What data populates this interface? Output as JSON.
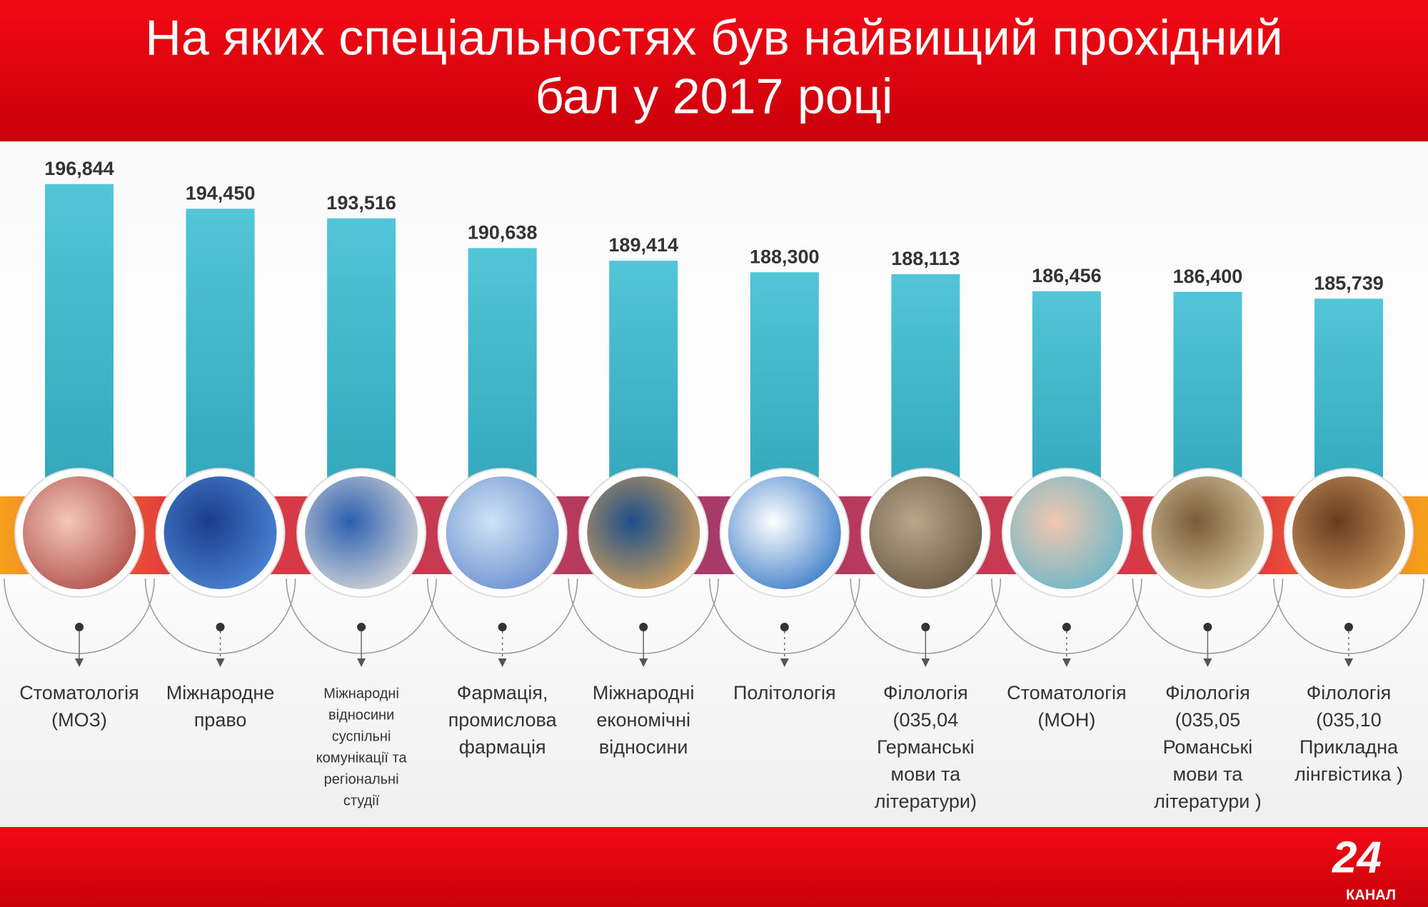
{
  "chart_data": {
    "type": "bar",
    "title": [
      "На яких спеціальностях був найвищий прохідний",
      "бал у 2017 році"
    ],
    "categories": [
      [
        "Стоматологія",
        "(МОЗ)"
      ],
      [
        "Міжнародне",
        "право"
      ],
      [
        "Міжнародні",
        "відносини",
        "суспільні",
        "комунікації та",
        "регіональні",
        "студії"
      ],
      [
        "Фармація,",
        "промислова",
        "фармація"
      ],
      [
        "Міжнародні",
        "економічні",
        "відносини"
      ],
      [
        "Політологія"
      ],
      [
        "Філологія",
        "(035,04",
        "Германські",
        "мови та",
        "літератури)"
      ],
      [
        "Стоматологія",
        "(МОН)"
      ],
      [
        "Філологія",
        "(035,05",
        "Романські",
        "мови та",
        "літератури )"
      ],
      [
        "Філологія",
        "(035,10",
        "Прикладна",
        "лінгвістика )"
      ]
    ],
    "values": [
      196.844,
      194.45,
      193.516,
      190.638,
      189.414,
      188.3,
      188.113,
      186.456,
      186.4,
      185.739
    ],
    "value_labels": [
      "196,844",
      "194,450",
      "193,516",
      "190,638",
      "189,414",
      "188,300",
      "188,113",
      "186,456",
      "186,400",
      "185,739"
    ],
    "color": "#4ec3d6",
    "ylim": [
      167,
      198
    ]
  },
  "logo": {
    "number": "24",
    "text": "КАНАЛ"
  }
}
